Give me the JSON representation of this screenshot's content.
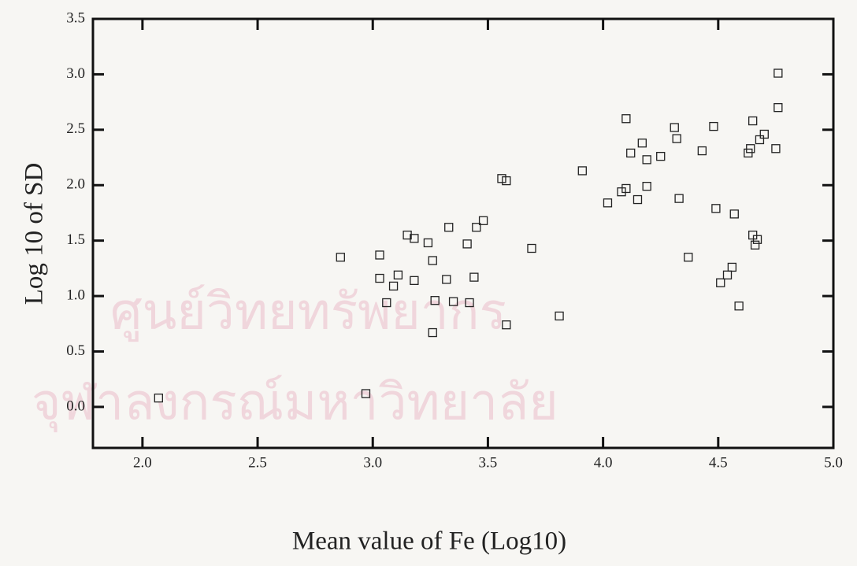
{
  "chart_data": {
    "type": "scatter",
    "x_label": "Mean value of Fe (Log10)",
    "y_label": "Log 10 of SD",
    "watermark": [
      "ศูนย์วิทยทรัพยากร",
      "จุฬาลงกรณ์มหาวิทยาลัย"
    ],
    "marker": "square",
    "color": "#222222",
    "xlim": [
      1.785,
      5.0
    ],
    "ylim": [
      -0.37,
      3.5
    ],
    "xticks": [
      {
        "value": 2,
        "label": "2.0"
      },
      2.5,
      {
        "value": 3,
        "label": "3.0"
      },
      3.5,
      {
        "value": 4,
        "label": "4.0"
      },
      4.5,
      {
        "value": 5,
        "label": "5.0"
      }
    ],
    "yticks": [
      {
        "value": 0,
        "label": "0.0"
      },
      0.5,
      {
        "value": 1,
        "label": "1.0"
      },
      1.5,
      {
        "value": 2,
        "label": "2.0"
      },
      2.5,
      {
        "value": 3,
        "label": "3.0"
      },
      3.5
    ],
    "x": [
      2.07,
      2.97,
      2.86,
      3.03,
      3.03,
      3.06,
      3.09,
      3.11,
      3.15,
      3.18,
      3.18,
      3.24,
      3.26,
      3.27,
      3.26,
      3.32,
      3.33,
      3.35,
      3.41,
      3.42,
      3.44,
      3.45,
      3.48,
      3.56,
      3.58,
      3.58,
      3.69,
      3.81,
      3.91,
      4.02,
      4.08,
      4.1,
      4.1,
      4.12,
      4.15,
      4.17,
      4.19,
      4.19,
      4.25,
      4.31,
      4.32,
      4.33,
      4.37,
      4.43,
      4.48,
      4.49,
      4.51,
      4.54,
      4.56,
      4.57,
      4.59,
      4.63,
      4.64,
      4.65,
      4.65,
      4.66,
      4.67,
      4.68,
      4.7,
      4.75,
      4.76,
      4.76
    ],
    "values": [
      0.08,
      0.12,
      1.35,
      1.37,
      1.16,
      0.94,
      1.09,
      1.19,
      1.55,
      1.52,
      1.14,
      1.48,
      1.32,
      0.96,
      0.67,
      1.15,
      1.62,
      0.95,
      1.47,
      0.94,
      1.17,
      1.62,
      1.68,
      2.06,
      2.04,
      0.74,
      1.43,
      0.82,
      2.13,
      1.84,
      1.94,
      1.97,
      2.6,
      2.29,
      1.87,
      2.38,
      2.23,
      1.99,
      2.26,
      2.52,
      2.42,
      1.88,
      1.35,
      2.31,
      2.53,
      1.79,
      1.12,
      1.19,
      1.26,
      1.74,
      0.91,
      2.29,
      2.33,
      2.58,
      1.55,
      1.46,
      1.51,
      2.41,
      2.46,
      2.33,
      2.7,
      3.01
    ]
  }
}
